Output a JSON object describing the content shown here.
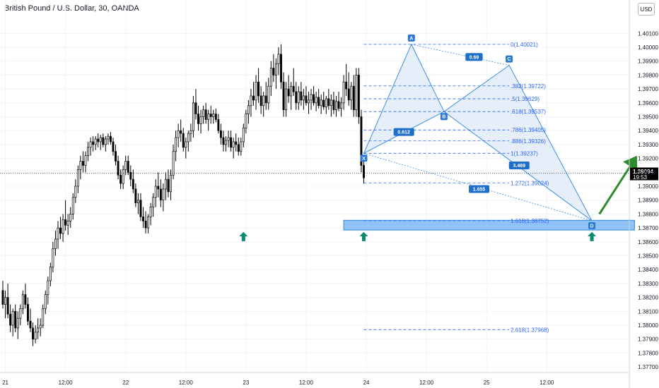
{
  "header": {
    "title": "British Pound / U.S. Dollar, 30, OANDA",
    "currency": "USD"
  },
  "colors": {
    "bull": "#ffffff",
    "bear": "#000000",
    "wick": "#000000",
    "pattern_fill": "#dfeaf7",
    "pattern_line": "#3d8fe0",
    "fib": "#2962ff",
    "zone": "#90c2f5",
    "zone_border": "#2e86de",
    "arrow_up": "#0b8a6e",
    "forecast_arrow": "#2e8b2e",
    "last_price_bg": "#000000"
  },
  "chart_data": {
    "type": "candlestick",
    "instrument": "British Pound / U.S. Dollar",
    "timeframe": "30",
    "source": "OANDA",
    "ylim": [
      1.3766,
      1.4034
    ],
    "y_ticks": [
      "1.40100",
      "1.40000",
      "1.39900",
      "1.39800",
      "1.39700",
      "1.39600",
      "1.39500",
      "1.39400",
      "1.39300",
      "1.39200",
      "1.39100",
      "1.39000",
      "1.38900",
      "1.38800",
      "1.38700",
      "1.38600",
      "1.38500",
      "1.38400",
      "1.38300",
      "1.38200",
      "1.38100",
      "1.38000",
      "1.37900",
      "1.37800",
      "1.37700"
    ],
    "x_ticks": [
      {
        "label": "21",
        "i": 1
      },
      {
        "label": "12:00",
        "i": 25
      },
      {
        "label": "22",
        "i": 49
      },
      {
        "label": "12:00",
        "i": 73
      },
      {
        "label": "23",
        "i": 97
      },
      {
        "label": "12:00",
        "i": 121
      },
      {
        "label": "24",
        "i": 145
      },
      {
        "label": "12:00",
        "i": 169
      },
      {
        "label": "25",
        "i": 193
      },
      {
        "label": "12:00",
        "i": 217
      }
    ],
    "candles": [
      [
        1.3825,
        1.3832,
        1.3812,
        1.3815
      ],
      [
        1.3815,
        1.3825,
        1.3805,
        1.382
      ],
      [
        1.382,
        1.383,
        1.3805,
        1.3808
      ],
      [
        1.3808,
        1.3815,
        1.3795,
        1.38
      ],
      [
        1.38,
        1.3812,
        1.3792,
        1.381
      ],
      [
        1.381,
        1.3815,
        1.3795,
        1.3798
      ],
      [
        1.3798,
        1.381,
        1.379,
        1.3805
      ],
      [
        1.3805,
        1.3815,
        1.38,
        1.3812
      ],
      [
        1.3812,
        1.3825,
        1.3808,
        1.3822
      ],
      [
        1.3822,
        1.383,
        1.3812,
        1.3815
      ],
      [
        1.3815,
        1.382,
        1.38,
        1.3803
      ],
      [
        1.3803,
        1.3812,
        1.3795,
        1.3798
      ],
      [
        1.3798,
        1.3802,
        1.3785,
        1.379
      ],
      [
        1.379,
        1.38,
        1.3787,
        1.3795
      ],
      [
        1.3795,
        1.3805,
        1.379,
        1.3798
      ],
      [
        1.3798,
        1.3805,
        1.3792,
        1.38
      ],
      [
        1.38,
        1.3815,
        1.3798,
        1.3812
      ],
      [
        1.3812,
        1.3825,
        1.3808,
        1.3822
      ],
      [
        1.3822,
        1.3835,
        1.3815,
        1.3832
      ],
      [
        1.3832,
        1.3845,
        1.3828,
        1.3842
      ],
      [
        1.3842,
        1.386,
        1.3838,
        1.3855
      ],
      [
        1.3855,
        1.3868,
        1.385,
        1.3862
      ],
      [
        1.3862,
        1.3875,
        1.3855,
        1.387
      ],
      [
        1.387,
        1.3878,
        1.3862,
        1.3866
      ],
      [
        1.3866,
        1.388,
        1.386,
        1.3876
      ],
      [
        1.3876,
        1.389,
        1.3868,
        1.3872
      ],
      [
        1.3872,
        1.388,
        1.3865,
        1.3875
      ],
      [
        1.3875,
        1.3885,
        1.387,
        1.388
      ],
      [
        1.388,
        1.3895,
        1.3876,
        1.3892
      ],
      [
        1.3892,
        1.3905,
        1.3888,
        1.39
      ],
      [
        1.39,
        1.3915,
        1.3895,
        1.3912
      ],
      [
        1.3912,
        1.3922,
        1.3905,
        1.3918
      ],
      [
        1.3918,
        1.3925,
        1.391,
        1.3915
      ],
      [
        1.3915,
        1.3925,
        1.391,
        1.3922
      ],
      [
        1.3922,
        1.3932,
        1.3918,
        1.3928
      ],
      [
        1.3928,
        1.3935,
        1.3922,
        1.3932
      ],
      [
        1.3932,
        1.3936,
        1.3925,
        1.393
      ],
      [
        1.393,
        1.3936,
        1.3926,
        1.3934
      ],
      [
        1.3934,
        1.3938,
        1.3928,
        1.3932
      ],
      [
        1.3932,
        1.3937,
        1.3926,
        1.3935
      ],
      [
        1.3935,
        1.3938,
        1.3928,
        1.393
      ],
      [
        1.393,
        1.3936,
        1.3925,
        1.3934
      ],
      [
        1.3934,
        1.3938,
        1.393,
        1.3936
      ],
      [
        1.3936,
        1.3939,
        1.393,
        1.3932
      ],
      [
        1.3932,
        1.3935,
        1.3922,
        1.3925
      ],
      [
        1.3925,
        1.393,
        1.3915,
        1.3918
      ],
      [
        1.3918,
        1.3922,
        1.3905,
        1.3908
      ],
      [
        1.3908,
        1.3912,
        1.3898,
        1.3902
      ],
      [
        1.3902,
        1.3915,
        1.3898,
        1.3912
      ],
      [
        1.3912,
        1.3922,
        1.3908,
        1.3918
      ],
      [
        1.3918,
        1.3922,
        1.3908,
        1.391
      ],
      [
        1.391,
        1.3915,
        1.39,
        1.3905
      ],
      [
        1.3905,
        1.3912,
        1.3895,
        1.3898
      ],
      [
        1.3898,
        1.3902,
        1.3885,
        1.3888
      ],
      [
        1.3888,
        1.3895,
        1.388,
        1.389
      ],
      [
        1.389,
        1.3895,
        1.3875,
        1.3878
      ],
      [
        1.3878,
        1.3885,
        1.387,
        1.3875
      ],
      [
        1.3875,
        1.3882,
        1.3866,
        1.387
      ],
      [
        1.387,
        1.388,
        1.3866,
        1.3878
      ],
      [
        1.3878,
        1.3888,
        1.3872,
        1.3885
      ],
      [
        1.3885,
        1.3895,
        1.3878,
        1.3892
      ],
      [
        1.3892,
        1.3905,
        1.3885,
        1.39
      ],
      [
        1.39,
        1.391,
        1.3892,
        1.3898
      ],
      [
        1.3898,
        1.3905,
        1.3885,
        1.389
      ],
      [
        1.389,
        1.3902,
        1.3882,
        1.3898
      ],
      [
        1.3898,
        1.391,
        1.389,
        1.3905
      ],
      [
        1.3905,
        1.3912,
        1.3892,
        1.3896
      ],
      [
        1.3896,
        1.3912,
        1.389,
        1.3908
      ],
      [
        1.3908,
        1.393,
        1.3905,
        1.3925
      ],
      [
        1.3925,
        1.394,
        1.3918,
        1.3935
      ],
      [
        1.3935,
        1.3945,
        1.3928,
        1.394
      ],
      [
        1.394,
        1.3948,
        1.3932,
        1.3938
      ],
      [
        1.3938,
        1.3942,
        1.3925,
        1.3928
      ],
      [
        1.3928,
        1.3935,
        1.392,
        1.3932
      ],
      [
        1.3932,
        1.394,
        1.3925,
        1.3938
      ],
      [
        1.3938,
        1.3945,
        1.3932,
        1.394
      ],
      [
        1.394,
        1.3965,
        1.3935,
        1.396
      ],
      [
        1.396,
        1.397,
        1.3948,
        1.3952
      ],
      [
        1.3952,
        1.3958,
        1.394,
        1.3945
      ],
      [
        1.3945,
        1.3955,
        1.3938,
        1.395
      ],
      [
        1.395,
        1.3958,
        1.3945,
        1.3955
      ],
      [
        1.3955,
        1.396,
        1.3945,
        1.3948
      ],
      [
        1.3948,
        1.3955,
        1.394,
        1.3952
      ],
      [
        1.3952,
        1.3958,
        1.3945,
        1.395
      ],
      [
        1.395,
        1.3955,
        1.3945,
        1.3952
      ],
      [
        1.3952,
        1.3956,
        1.3946,
        1.3948
      ],
      [
        1.3948,
        1.3952,
        1.3938,
        1.394
      ],
      [
        1.394,
        1.3945,
        1.393,
        1.3935
      ],
      [
        1.3935,
        1.394,
        1.3925,
        1.393
      ],
      [
        1.393,
        1.3936,
        1.3925,
        1.3933
      ],
      [
        1.3933,
        1.394,
        1.3928,
        1.3935
      ],
      [
        1.3935,
        1.394,
        1.3925,
        1.3928
      ],
      [
        1.3928,
        1.3935,
        1.392,
        1.3932
      ],
      [
        1.3932,
        1.3938,
        1.3925,
        1.393
      ],
      [
        1.393,
        1.3935,
        1.3922,
        1.3925
      ],
      [
        1.3925,
        1.3935,
        1.3922,
        1.3932
      ],
      [
        1.3932,
        1.3945,
        1.3928,
        1.3942
      ],
      [
        1.3942,
        1.3955,
        1.3938,
        1.3952
      ],
      [
        1.3952,
        1.3962,
        1.3945,
        1.3958
      ],
      [
        1.3958,
        1.397,
        1.395,
        1.3965
      ],
      [
        1.3965,
        1.3975,
        1.3958,
        1.3962
      ],
      [
        1.3962,
        1.398,
        1.3955,
        1.3975
      ],
      [
        1.3975,
        1.3985,
        1.396,
        1.3965
      ],
      [
        1.3965,
        1.3972,
        1.3952,
        1.3958
      ],
      [
        1.3958,
        1.3968,
        1.395,
        1.3965
      ],
      [
        1.3965,
        1.3975,
        1.3955,
        1.396
      ],
      [
        1.396,
        1.3978,
        1.3955,
        1.3972
      ],
      [
        1.3972,
        1.399,
        1.3965,
        1.3985
      ],
      [
        1.3985,
        1.3995,
        1.3975,
        1.398
      ],
      [
        1.398,
        1.3992,
        1.397,
        1.3988
      ],
      [
        1.3988,
        1.4,
        1.398,
        1.3995
      ],
      [
        1.3995,
        1.4002,
        1.397,
        1.3975
      ],
      [
        1.3975,
        1.3982,
        1.395,
        1.3955
      ],
      [
        1.3955,
        1.3975,
        1.395,
        1.397
      ],
      [
        1.397,
        1.398,
        1.396,
        1.3965
      ],
      [
        1.3965,
        1.3975,
        1.3955,
        1.3972
      ],
      [
        1.3972,
        1.3985,
        1.3965,
        1.3968
      ],
      [
        1.3968,
        1.3975,
        1.3955,
        1.396
      ],
      [
        1.396,
        1.3972,
        1.3955,
        1.3968
      ],
      [
        1.3968,
        1.3975,
        1.3958,
        1.3962
      ],
      [
        1.3962,
        1.397,
        1.3955,
        1.3965
      ],
      [
        1.3965,
        1.3972,
        1.3958,
        1.396
      ],
      [
        1.396,
        1.3968,
        1.3952,
        1.3962
      ],
      [
        1.3962,
        1.397,
        1.3955,
        1.3966
      ],
      [
        1.3966,
        1.3972,
        1.3958,
        1.396
      ],
      [
        1.396,
        1.3968,
        1.3954,
        1.3964
      ],
      [
        1.3964,
        1.397,
        1.3956,
        1.3958
      ],
      [
        1.3958,
        1.3966,
        1.3952,
        1.3962
      ],
      [
        1.3962,
        1.3968,
        1.3955,
        1.3957
      ],
      [
        1.3957,
        1.3965,
        1.3952,
        1.3963
      ],
      [
        1.3963,
        1.397,
        1.3955,
        1.3958
      ],
      [
        1.3958,
        1.3966,
        1.395,
        1.3962
      ],
      [
        1.3962,
        1.3968,
        1.3952,
        1.3955
      ],
      [
        1.3955,
        1.3965,
        1.395,
        1.3961
      ],
      [
        1.3961,
        1.3968,
        1.3954,
        1.3956
      ],
      [
        1.3956,
        1.3964,
        1.395,
        1.396
      ],
      [
        1.396,
        1.398,
        1.3955,
        1.3975
      ],
      [
        1.3975,
        1.3988,
        1.3965,
        1.397
      ],
      [
        1.397,
        1.3982,
        1.3958,
        1.3962
      ],
      [
        1.3962,
        1.3975,
        1.3955,
        1.3972
      ],
      [
        1.3972,
        1.398,
        1.395,
        1.3955
      ],
      [
        1.3955,
        1.3985,
        1.395,
        1.398
      ],
      [
        1.398,
        1.3985,
        1.3945,
        1.395
      ],
      [
        1.395,
        1.3955,
        1.391,
        1.3915
      ],
      [
        1.3915,
        1.392,
        1.3902,
        1.3906
      ]
    ],
    "pattern": {
      "name": "XABCD",
      "points": [
        {
          "label": "X",
          "i": 144,
          "price": 1.39237
        },
        {
          "label": "A",
          "i": 163,
          "price": 1.40021
        },
        {
          "label": "B",
          "i": 176,
          "price": 1.39537
        },
        {
          "label": "C",
          "i": 202,
          "price": 1.3987
        },
        {
          "label": "D",
          "i": 235,
          "price": 1.38752
        }
      ],
      "ratios": [
        {
          "text": "0.69",
          "i": 188,
          "price": 1.3993
        },
        {
          "text": "0.612",
          "i": 160,
          "price": 1.3939
        },
        {
          "text": "3.469",
          "i": 206,
          "price": 1.3915
        },
        {
          "text": "1.655",
          "i": 190,
          "price": 1.3898
        }
      ]
    },
    "fib_levels": [
      {
        "label": "0(1.40021)",
        "price": 1.40021
      },
      {
        "label": ".382(1.39722)",
        "price": 1.39722
      },
      {
        "label": ".5(1.39629)",
        "price": 1.39629
      },
      {
        "label": ".618(1.39537)",
        "price": 1.39537
      },
      {
        "label": ".786(1.39405)",
        "price": 1.39405
      },
      {
        "label": ".886(1.39326)",
        "price": 1.39326
      },
      {
        "label": "1(1.39237)",
        "price": 1.39237
      },
      {
        "label": "1.272(1.39024)",
        "price": 1.39024
      },
      {
        "label": "1.618(1.38752)",
        "price": 1.38752
      },
      {
        "label": "2.618(1.37968)",
        "price": 1.37968
      }
    ],
    "support_zone": {
      "from_i": 136,
      "to_i": 252,
      "top": 1.38755,
      "bottom": 1.38685
    },
    "support_arrows": [
      {
        "i": 144,
        "price": 1.3864
      },
      {
        "i": 96,
        "price": 1.3864
      },
      {
        "i": 235,
        "price": 1.3864
      }
    ],
    "forecast_arrow": {
      "from_i": 238,
      "from_price": 1.388,
      "to_i": 253,
      "to_price": 1.3922
    },
    "last_price": {
      "value": "1.39094",
      "price": 1.39094,
      "timer": "19:53"
    }
  }
}
